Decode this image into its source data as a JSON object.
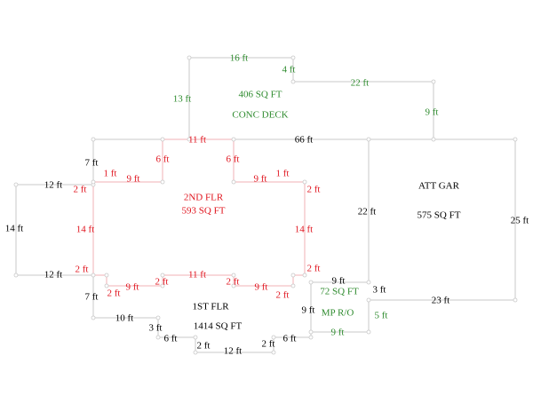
{
  "sketch": {
    "colors": {
      "first_floor": "#000000",
      "second_floor": "#e0141e",
      "deck_mp": "#2e8b2e",
      "lines": "#c8c8c8"
    },
    "areas": {
      "deck": {
        "area": "406 SQ FT",
        "name": "CONC DECK"
      },
      "second_floor": {
        "name": "2ND FLR",
        "area": "593 SQ FT"
      },
      "garage": {
        "name": "ATT GAR",
        "area": "575 SQ FT"
      },
      "first_floor": {
        "name": "1ST FLR",
        "area": "1414 SQ FT"
      },
      "mp": {
        "area": "72 SQ FT",
        "name": "MP R/O"
      }
    },
    "black_labels": [
      "66 ft",
      "7 ft",
      "12 ft",
      "14 ft",
      "12 ft",
      "7 ft",
      "10 ft",
      "3 ft",
      "6 ft",
      "2 ft",
      "12 ft",
      "2 ft",
      "6 ft",
      "9 ft",
      "9 ft",
      "3 ft",
      "22 ft",
      "23 ft",
      "25 ft"
    ],
    "red_labels": [
      "11 ft",
      "6 ft",
      "6 ft",
      "9 ft",
      "1 ft",
      "2 ft",
      "9 ft",
      "1 ft",
      "2 ft",
      "14 ft",
      "14 ft",
      "2 ft",
      "2 ft",
      "9 ft",
      "2 ft",
      "11 ft",
      "2 ft",
      "9 ft",
      "2 ft",
      "2 ft"
    ],
    "green_labels": [
      "16 ft",
      "4 ft",
      "22 ft",
      "13 ft",
      "9 ft",
      "9 ft",
      "5 ft"
    ]
  }
}
